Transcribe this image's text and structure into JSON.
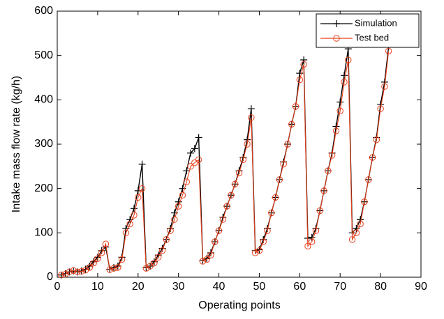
{
  "chart_data": {
    "type": "line",
    "xlabel": "Operating points",
    "ylabel": "Intake mass flow rate (kg/h)",
    "x": [
      1,
      2,
      3,
      4,
      5,
      6,
      7,
      8,
      9,
      10,
      11,
      12,
      13,
      14,
      15,
      16,
      17,
      18,
      19,
      20,
      21,
      22,
      23,
      24,
      25,
      26,
      27,
      28,
      29,
      30,
      31,
      32,
      33,
      34,
      35,
      36,
      37,
      38,
      39,
      40,
      41,
      42,
      43,
      44,
      45,
      46,
      47,
      48,
      49,
      50,
      51,
      52,
      53,
      54,
      55,
      56,
      57,
      58,
      59,
      60,
      61,
      62,
      63,
      64,
      65,
      66,
      67,
      68,
      69,
      70,
      71,
      72,
      73,
      74,
      75,
      76,
      77,
      78,
      79,
      80,
      81,
      82
    ],
    "series": [
      {
        "name": "Simulation",
        "color": "#000000",
        "marker": "plus",
        "values": [
          5,
          8,
          12,
          14,
          12,
          14,
          18,
          25,
          35,
          45,
          60,
          68,
          18,
          22,
          25,
          45,
          110,
          130,
          155,
          195,
          255,
          22,
          25,
          35,
          50,
          65,
          85,
          110,
          145,
          170,
          200,
          240,
          280,
          290,
          315,
          38,
          42,
          55,
          80,
          105,
          135,
          160,
          185,
          210,
          240,
          270,
          310,
          380,
          60,
          62,
          85,
          110,
          145,
          180,
          220,
          260,
          300,
          345,
          385,
          460,
          490,
          88,
          90,
          110,
          150,
          195,
          240,
          280,
          340,
          395,
          455,
          515,
          100,
          110,
          130,
          170,
          220,
          270,
          315,
          390,
          440,
          520
        ]
      },
      {
        "name": "Test bed",
        "color": "#e8401c",
        "marker": "circle",
        "values": [
          5,
          7,
          12,
          15,
          12,
          13,
          16,
          22,
          32,
          42,
          55,
          75,
          17,
          20,
          22,
          40,
          100,
          120,
          140,
          180,
          200,
          20,
          25,
          32,
          45,
          60,
          85,
          105,
          130,
          160,
          185,
          215,
          250,
          258,
          265,
          36,
          40,
          50,
          80,
          105,
          130,
          160,
          185,
          210,
          235,
          265,
          300,
          360,
          55,
          60,
          80,
          105,
          145,
          180,
          220,
          255,
          300,
          345,
          385,
          445,
          480,
          70,
          80,
          105,
          150,
          195,
          240,
          275,
          330,
          375,
          440,
          490,
          85,
          100,
          120,
          170,
          220,
          270,
          310,
          380,
          430,
          510
        ]
      }
    ],
    "xlim": [
      0,
      90
    ],
    "xticks": [
      0,
      10,
      20,
      30,
      40,
      50,
      60,
      70,
      80,
      90
    ],
    "ylim": [
      0,
      600
    ],
    "yticks": [
      0,
      100,
      200,
      300,
      400,
      500,
      600
    ],
    "grid": false,
    "legend": "upper right"
  }
}
